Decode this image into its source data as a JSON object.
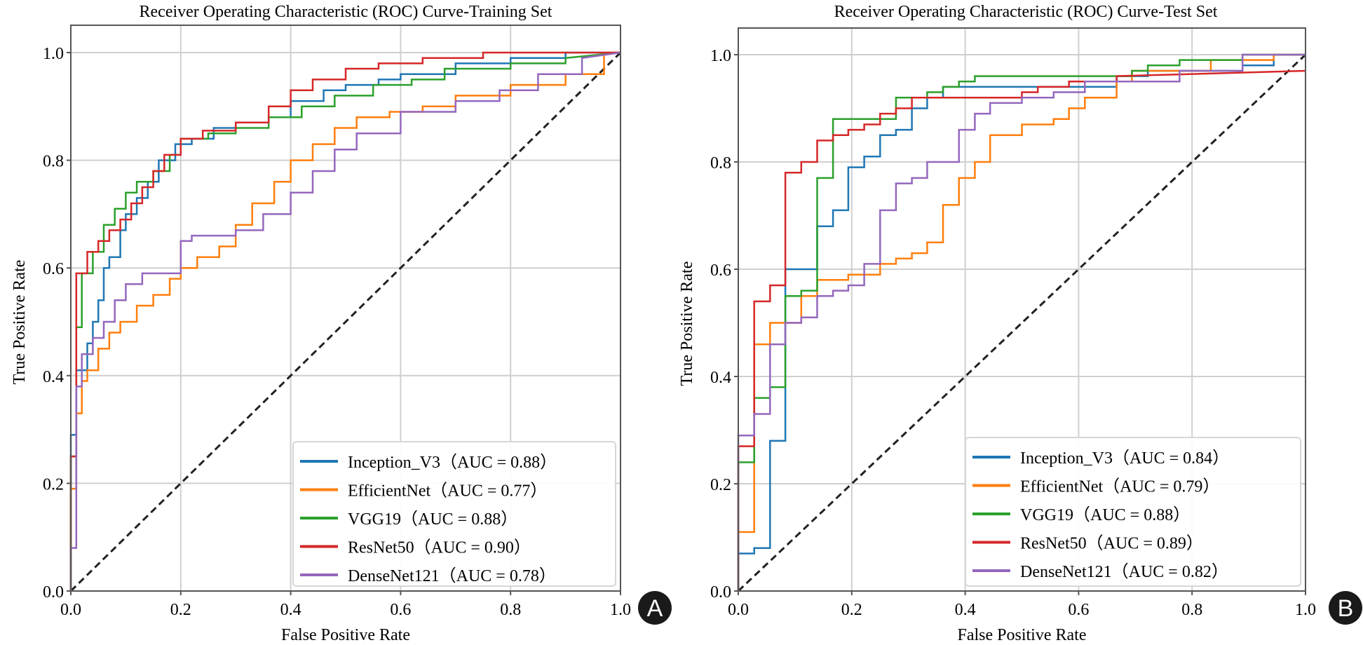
{
  "chart_data": [
    {
      "type": "line",
      "panel_label": "A",
      "title": "Receiver Operating Characteristic (ROC) Curve-Training Set",
      "xlabel": "False Positive Rate",
      "ylabel": "True Positive Rate",
      "xlim": [
        0,
        1
      ],
      "ylim": [
        0,
        1.05
      ],
      "xticks": [
        "0.0",
        "0.2",
        "0.4",
        "0.6",
        "0.8",
        "1.0"
      ],
      "yticks": [
        "0.0",
        "0.2",
        "0.4",
        "0.6",
        "0.8",
        "1.0"
      ],
      "grid": true,
      "legend_position": "lower-right",
      "diagonal": {
        "x": [
          0,
          1
        ],
        "y": [
          0,
          1
        ],
        "style": "dashed",
        "color": "#222222"
      },
      "series": [
        {
          "name": "Inception_V3",
          "auc": "0.88",
          "legend": "Inception_V3（AUC = 0.88）",
          "color": "#1f77b4",
          "x": [
            0,
            0,
            0.01,
            0.01,
            0.03,
            0.03,
            0.04,
            0.04,
            0.05,
            0.05,
            0.06,
            0.06,
            0.07,
            0.07,
            0.09,
            0.09,
            0.1,
            0.1,
            0.12,
            0.12,
            0.14,
            0.14,
            0.16,
            0.16,
            0.19,
            0.19,
            0.22,
            0.22,
            0.26,
            0.26,
            0.3,
            0.3,
            0.36,
            0.36,
            0.4,
            0.4,
            0.46,
            0.46,
            0.5,
            0.5,
            0.56,
            0.56,
            0.6,
            0.6,
            0.7,
            0.7,
            0.8,
            0.8,
            0.9,
            0.9,
            1.0
          ],
          "y": [
            0,
            0.29,
            0.29,
            0.41,
            0.41,
            0.46,
            0.46,
            0.5,
            0.5,
            0.54,
            0.54,
            0.6,
            0.6,
            0.62,
            0.62,
            0.67,
            0.67,
            0.7,
            0.7,
            0.73,
            0.73,
            0.76,
            0.76,
            0.8,
            0.8,
            0.83,
            0.83,
            0.84,
            0.84,
            0.86,
            0.86,
            0.87,
            0.87,
            0.88,
            0.88,
            0.91,
            0.91,
            0.93,
            0.93,
            0.94,
            0.94,
            0.95,
            0.95,
            0.96,
            0.96,
            0.98,
            0.98,
            0.99,
            0.99,
            1.0,
            1.0
          ]
        },
        {
          "name": "EfficientNet",
          "auc": "0.77",
          "legend": "EfficientNet（AUC = 0.77）",
          "color": "#ff7f0e",
          "x": [
            0,
            0,
            0.01,
            0.01,
            0.02,
            0.02,
            0.03,
            0.03,
            0.05,
            0.05,
            0.07,
            0.07,
            0.09,
            0.09,
            0.12,
            0.12,
            0.15,
            0.15,
            0.18,
            0.18,
            0.2,
            0.2,
            0.23,
            0.23,
            0.27,
            0.27,
            0.3,
            0.3,
            0.33,
            0.33,
            0.37,
            0.37,
            0.4,
            0.4,
            0.44,
            0.44,
            0.48,
            0.48,
            0.52,
            0.52,
            0.58,
            0.58,
            0.64,
            0.64,
            0.7,
            0.7,
            0.8,
            0.8,
            0.9,
            0.9,
            0.97,
            0.97,
            1.0
          ],
          "y": [
            0,
            0.19,
            0.19,
            0.33,
            0.33,
            0.39,
            0.39,
            0.41,
            0.41,
            0.45,
            0.45,
            0.48,
            0.48,
            0.5,
            0.5,
            0.53,
            0.53,
            0.55,
            0.55,
            0.58,
            0.58,
            0.6,
            0.6,
            0.62,
            0.62,
            0.64,
            0.64,
            0.68,
            0.68,
            0.72,
            0.72,
            0.76,
            0.76,
            0.8,
            0.8,
            0.83,
            0.83,
            0.86,
            0.86,
            0.88,
            0.88,
            0.89,
            0.89,
            0.9,
            0.9,
            0.92,
            0.92,
            0.94,
            0.94,
            0.96,
            0.96,
            1.0,
            1.0
          ]
        },
        {
          "name": "VGG19",
          "auc": "0.88",
          "legend": "VGG19（AUC = 0.88）",
          "color": "#2ca02c",
          "x": [
            0,
            0,
            0.01,
            0.01,
            0.02,
            0.02,
            0.04,
            0.04,
            0.06,
            0.06,
            0.08,
            0.08,
            0.1,
            0.1,
            0.12,
            0.12,
            0.15,
            0.15,
            0.18,
            0.18,
            0.2,
            0.2,
            0.25,
            0.25,
            0.3,
            0.3,
            0.36,
            0.36,
            0.42,
            0.42,
            0.48,
            0.48,
            0.55,
            0.55,
            0.62,
            0.62,
            0.68,
            0.68,
            0.8,
            0.8,
            0.9,
            0.9,
            1.0
          ],
          "y": [
            0,
            0.25,
            0.25,
            0.49,
            0.49,
            0.59,
            0.59,
            0.63,
            0.63,
            0.68,
            0.68,
            0.71,
            0.71,
            0.74,
            0.74,
            0.76,
            0.76,
            0.78,
            0.78,
            0.81,
            0.81,
            0.84,
            0.84,
            0.85,
            0.85,
            0.86,
            0.86,
            0.88,
            0.88,
            0.9,
            0.9,
            0.92,
            0.92,
            0.94,
            0.94,
            0.95,
            0.95,
            0.97,
            0.97,
            0.98,
            0.98,
            0.99,
            1.0
          ]
        },
        {
          "name": "ResNet50",
          "auc": "0.90",
          "legend": "ResNet50（AUC = 0.90）",
          "color": "#d62728",
          "x": [
            0,
            0,
            0.01,
            0.01,
            0.03,
            0.03,
            0.05,
            0.05,
            0.07,
            0.07,
            0.09,
            0.09,
            0.11,
            0.11,
            0.13,
            0.13,
            0.15,
            0.15,
            0.17,
            0.17,
            0.2,
            0.2,
            0.24,
            0.24,
            0.3,
            0.3,
            0.36,
            0.36,
            0.4,
            0.4,
            0.44,
            0.44,
            0.5,
            0.5,
            0.56,
            0.56,
            0.64,
            0.64,
            0.75,
            0.75,
            0.85,
            0.85,
            1.0
          ],
          "y": [
            0,
            0.25,
            0.25,
            0.59,
            0.59,
            0.63,
            0.63,
            0.65,
            0.65,
            0.67,
            0.67,
            0.69,
            0.69,
            0.72,
            0.72,
            0.75,
            0.75,
            0.78,
            0.78,
            0.81,
            0.81,
            0.84,
            0.84,
            0.855,
            0.855,
            0.87,
            0.87,
            0.9,
            0.9,
            0.93,
            0.93,
            0.95,
            0.95,
            0.97,
            0.97,
            0.98,
            0.98,
            0.99,
            0.99,
            1.0,
            1.0,
            1.0,
            1.0
          ]
        },
        {
          "name": "DenseNet121",
          "auc": "0.78",
          "legend": "DenseNet121（AUC = 0.78）",
          "color": "#9467bd",
          "x": [
            0,
            0,
            0.01,
            0.01,
            0.02,
            0.02,
            0.04,
            0.04,
            0.06,
            0.06,
            0.08,
            0.08,
            0.1,
            0.1,
            0.13,
            0.13,
            0.2,
            0.2,
            0.22,
            0.22,
            0.3,
            0.3,
            0.35,
            0.35,
            0.4,
            0.4,
            0.44,
            0.44,
            0.48,
            0.48,
            0.52,
            0.52,
            0.6,
            0.6,
            0.7,
            0.7,
            0.78,
            0.78,
            0.85,
            0.85,
            0.93,
            0.93,
            1.0
          ],
          "y": [
            0,
            0.08,
            0.08,
            0.38,
            0.38,
            0.44,
            0.44,
            0.47,
            0.47,
            0.5,
            0.5,
            0.54,
            0.54,
            0.57,
            0.57,
            0.59,
            0.59,
            0.65,
            0.65,
            0.66,
            0.66,
            0.67,
            0.67,
            0.7,
            0.7,
            0.74,
            0.74,
            0.78,
            0.78,
            0.82,
            0.82,
            0.85,
            0.85,
            0.89,
            0.89,
            0.91,
            0.91,
            0.93,
            0.93,
            0.96,
            0.96,
            0.99,
            1.0
          ]
        }
      ]
    },
    {
      "type": "line",
      "panel_label": "B",
      "title": "Receiver Operating Characteristic (ROC) Curve-Test Set",
      "xlabel": "False Positive Rate",
      "ylabel": "True Positive Rate",
      "xlim": [
        0,
        1
      ],
      "ylim": [
        0,
        1.05
      ],
      "xticks": [
        "0.0",
        "0.2",
        "0.4",
        "0.6",
        "0.8",
        "1.0"
      ],
      "yticks": [
        "0.0",
        "0.2",
        "0.4",
        "0.6",
        "0.8",
        "1.0"
      ],
      "grid": true,
      "legend_position": "lower-right",
      "diagonal": {
        "x": [
          0,
          1
        ],
        "y": [
          0,
          1
        ],
        "style": "dashed",
        "color": "#222222"
      },
      "series": [
        {
          "name": "Inception_V3",
          "auc": "0.84",
          "legend": "Inception_V3（AUC = 0.84）",
          "color": "#1f77b4",
          "x": [
            0,
            0,
            0.028,
            0.028,
            0.056,
            0.056,
            0.083,
            0.083,
            0.139,
            0.139,
            0.167,
            0.167,
            0.194,
            0.194,
            0.222,
            0.222,
            0.25,
            0.25,
            0.278,
            0.278,
            0.306,
            0.306,
            0.333,
            0.333,
            0.361,
            0.361,
            0.417,
            0.417,
            0.667,
            0.667,
            0.722,
            0.722,
            0.889,
            0.889,
            0.944,
            0.944,
            1.0
          ],
          "y": [
            0,
            0.07,
            0.07,
            0.08,
            0.08,
            0.28,
            0.28,
            0.6,
            0.6,
            0.68,
            0.68,
            0.71,
            0.71,
            0.79,
            0.79,
            0.81,
            0.81,
            0.85,
            0.85,
            0.86,
            0.86,
            0.9,
            0.9,
            0.92,
            0.92,
            0.94,
            0.94,
            0.94,
            0.94,
            0.96,
            0.96,
            0.97,
            0.97,
            0.98,
            0.98,
            1.0,
            1.0
          ]
        },
        {
          "name": "EfficientNet",
          "auc": "0.79",
          "legend": "EfficientNet（AUC = 0.79）",
          "color": "#ff7f0e",
          "x": [
            0,
            0,
            0.028,
            0.028,
            0.056,
            0.056,
            0.111,
            0.111,
            0.139,
            0.139,
            0.194,
            0.194,
            0.25,
            0.25,
            0.278,
            0.278,
            0.306,
            0.306,
            0.333,
            0.333,
            0.361,
            0.361,
            0.389,
            0.389,
            0.417,
            0.417,
            0.444,
            0.444,
            0.5,
            0.5,
            0.556,
            0.556,
            0.583,
            0.583,
            0.611,
            0.611,
            0.667,
            0.667,
            0.694,
            0.694,
            0.833,
            0.833,
            0.944,
            0.944,
            1.0
          ],
          "y": [
            0,
            0.11,
            0.11,
            0.46,
            0.46,
            0.5,
            0.5,
            0.55,
            0.55,
            0.58,
            0.58,
            0.59,
            0.59,
            0.61,
            0.61,
            0.62,
            0.62,
            0.63,
            0.63,
            0.65,
            0.65,
            0.72,
            0.72,
            0.77,
            0.77,
            0.8,
            0.8,
            0.85,
            0.85,
            0.87,
            0.87,
            0.88,
            0.88,
            0.9,
            0.9,
            0.92,
            0.92,
            0.95,
            0.95,
            0.97,
            0.97,
            0.99,
            0.99,
            1.0,
            1.0
          ]
        },
        {
          "name": "VGG19",
          "auc": "0.88",
          "legend": "VGG19（AUC = 0.88）",
          "color": "#2ca02c",
          "x": [
            0,
            0,
            0.028,
            0.028,
            0.056,
            0.056,
            0.083,
            0.083,
            0.111,
            0.111,
            0.139,
            0.139,
            0.167,
            0.167,
            0.278,
            0.278,
            0.333,
            0.333,
            0.361,
            0.361,
            0.389,
            0.389,
            0.417,
            0.417,
            0.694,
            0.694,
            0.722,
            0.722,
            0.778,
            0.778,
            0.889,
            0.889,
            1.0
          ],
          "y": [
            0,
            0.24,
            0.24,
            0.36,
            0.36,
            0.38,
            0.38,
            0.55,
            0.55,
            0.56,
            0.56,
            0.77,
            0.77,
            0.88,
            0.88,
            0.92,
            0.92,
            0.93,
            0.93,
            0.94,
            0.94,
            0.95,
            0.95,
            0.96,
            0.96,
            0.97,
            0.97,
            0.98,
            0.98,
            0.99,
            0.99,
            1.0,
            1.0
          ]
        },
        {
          "name": "ResNet50",
          "auc": "0.89",
          "legend": "ResNet50（AUC = 0.89）",
          "color": "#d62728",
          "x": [
            0,
            0,
            0.028,
            0.028,
            0.056,
            0.056,
            0.083,
            0.083,
            0.111,
            0.111,
            0.139,
            0.139,
            0.167,
            0.167,
            0.194,
            0.194,
            0.222,
            0.222,
            0.25,
            0.25,
            0.278,
            0.278,
            0.306,
            0.306,
            0.5,
            0.5,
            0.528,
            0.528,
            0.583,
            0.583,
            0.667,
            0.667,
            1.0
          ],
          "y": [
            0,
            0.27,
            0.27,
            0.54,
            0.54,
            0.57,
            0.57,
            0.78,
            0.78,
            0.8,
            0.8,
            0.84,
            0.84,
            0.85,
            0.85,
            0.86,
            0.86,
            0.87,
            0.87,
            0.89,
            0.89,
            0.9,
            0.9,
            0.92,
            0.92,
            0.93,
            0.93,
            0.94,
            0.94,
            0.95,
            0.95,
            0.96,
            0.97
          ]
        },
        {
          "name": "DenseNet121",
          "auc": "0.82",
          "legend": "DenseNet121（AUC = 0.82）",
          "color": "#9467bd",
          "x": [
            0,
            0,
            0.028,
            0.028,
            0.056,
            0.056,
            0.083,
            0.083,
            0.111,
            0.111,
            0.139,
            0.139,
            0.167,
            0.167,
            0.194,
            0.194,
            0.222,
            0.222,
            0.25,
            0.25,
            0.278,
            0.278,
            0.306,
            0.306,
            0.333,
            0.333,
            0.389,
            0.389,
            0.417,
            0.417,
            0.444,
            0.444,
            0.5,
            0.5,
            0.556,
            0.556,
            0.611,
            0.611,
            0.778,
            0.778,
            0.889,
            0.889,
            1.0
          ],
          "y": [
            0,
            0.29,
            0.29,
            0.33,
            0.33,
            0.46,
            0.46,
            0.5,
            0.5,
            0.51,
            0.51,
            0.55,
            0.55,
            0.56,
            0.56,
            0.57,
            0.57,
            0.61,
            0.61,
            0.71,
            0.71,
            0.76,
            0.76,
            0.77,
            0.77,
            0.8,
            0.8,
            0.86,
            0.86,
            0.89,
            0.89,
            0.91,
            0.91,
            0.92,
            0.92,
            0.93,
            0.93,
            0.95,
            0.95,
            0.97,
            0.97,
            1.0,
            1.0
          ]
        }
      ]
    }
  ]
}
